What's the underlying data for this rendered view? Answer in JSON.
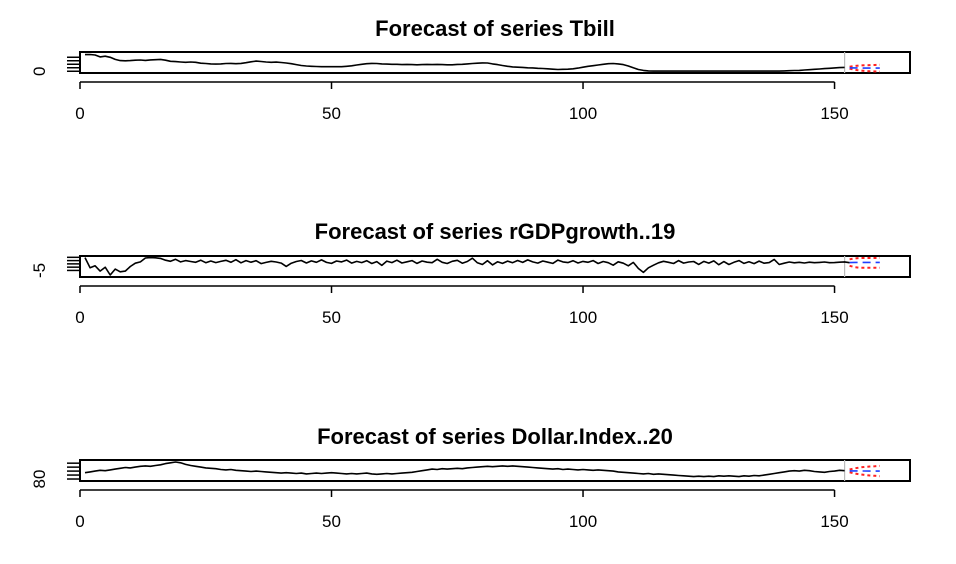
{
  "chart_data": [
    {
      "type": "line",
      "title": "Forecast of series Tbill",
      "xlabel": "",
      "ylabel": "",
      "xlim": [
        0,
        165
      ],
      "ylim": [
        -1,
        11
      ],
      "x_ticks": [
        0,
        50,
        100,
        150
      ],
      "x_tick_labels": [
        "0",
        "50",
        "100",
        "150"
      ],
      "y_ticks": [
        0,
        2,
        4,
        6,
        8
      ],
      "y_tick_labels": [
        "0"
      ],
      "history_end": 152,
      "series": [
        {
          "values": [
            9.5,
            9.6,
            9.3,
            8.2,
            8.6,
            8.0,
            6.8,
            6.1,
            6.0,
            6.1,
            6.3,
            6.4,
            6.2,
            6.5,
            6.6,
            6.8,
            6.3,
            5.7,
            5.5,
            5.3,
            5.1,
            5.3,
            5.1,
            4.6,
            4.4,
            4.2,
            4.1,
            4.2,
            4.4,
            4.5,
            4.3,
            4.5,
            4.9,
            5.4,
            5.8,
            5.6,
            5.3,
            5.1,
            5.2,
            5.0,
            4.7,
            4.3,
            3.8,
            3.3,
            3.0,
            2.8,
            2.7,
            2.6,
            2.6,
            2.6,
            2.6,
            2.6,
            2.8,
            3.1,
            3.6,
            4.0,
            4.3,
            4.5,
            4.4,
            4.2,
            4.1,
            4.0,
            4.0,
            3.8,
            3.9,
            3.8,
            3.7,
            3.8,
            3.9,
            3.8,
            3.9,
            3.8,
            3.7,
            3.7,
            3.9,
            4.0,
            4.2,
            4.4,
            4.6,
            4.8,
            4.7,
            4.2,
            3.8,
            3.3,
            2.8,
            2.5,
            2.3,
            2.2,
            2.0,
            1.9,
            1.7,
            1.6,
            1.4,
            1.2,
            1.0,
            1.1,
            1.2,
            1.4,
            1.8,
            2.3,
            2.8,
            3.2,
            3.6,
            4.0,
            4.3,
            4.4,
            4.2,
            3.8,
            3.0,
            2.0,
            1.0,
            0.5,
            0.2,
            0.1,
            0.1,
            0.1,
            0.1,
            0.1,
            0.1,
            0.1,
            0.1,
            0.1,
            0.1,
            0.1,
            0.1,
            0.1,
            0.1,
            0.1,
            0.1,
            0.1,
            0.1,
            0.1,
            0.1,
            0.1,
            0.1,
            0.1,
            0.1,
            0.1,
            0.1,
            0.2,
            0.3,
            0.4,
            0.5,
            0.7,
            0.9,
            1.1,
            1.3,
            1.5,
            1.7,
            1.9,
            2.1,
            2.2
          ],
          "color": "#000000"
        }
      ],
      "forecast": {
        "x": [
          153,
          154,
          155,
          156,
          157,
          158,
          159
        ],
        "mean": [
          2.0,
          1.9,
          1.9,
          1.8,
          1.8,
          1.8,
          1.8
        ],
        "lower": [
          1.5,
          0.8,
          0.4,
          0.2,
          0.0,
          -0.1,
          -0.2
        ],
        "upper": [
          2.6,
          3.0,
          3.3,
          3.4,
          3.5,
          3.6,
          3.7
        ]
      }
    },
    {
      "type": "line",
      "title": "Forecast of series rGDPgrowth..19",
      "xlabel": "",
      "ylabel": "",
      "xlim": [
        0,
        165
      ],
      "ylim": [
        -10,
        6
      ],
      "x_ticks": [
        0,
        50,
        100,
        150
      ],
      "x_tick_labels": [
        "0",
        "50",
        "100",
        "150"
      ],
      "y_ticks": [
        -5,
        -2.5,
        0,
        2.5,
        5
      ],
      "y_tick_labels": [
        "-5"
      ],
      "history_end": 152,
      "series": [
        {
          "values": [
            4.8,
            -3.0,
            -1.5,
            -5.5,
            -2.5,
            -8.5,
            -4.0,
            -6.0,
            -5.5,
            -2.0,
            0.5,
            1.5,
            4.5,
            4.8,
            4.6,
            4.2,
            2.8,
            2.0,
            3.5,
            1.5,
            2.5,
            1.8,
            1.2,
            2.8,
            0.9,
            2.2,
            1.0,
            1.9,
            2.7,
            1.2,
            3.2,
            0.8,
            2.5,
            1.3,
            2.4,
            0.2,
            1.1,
            2.0,
            1.4,
            0.6,
            -1.9,
            0.5,
            1.8,
            2.6,
            0.7,
            2.3,
            1.2,
            3.0,
            1.1,
            0.4,
            2.2,
            1.5,
            2.9,
            0.6,
            1.9,
            1.0,
            2.4,
            0.3,
            1.7,
            -1.2,
            2.1,
            1.0,
            2.8,
            0.7,
            1.6,
            2.5,
            0.4,
            2.2,
            1.3,
            0.9,
            3.5,
            1.2,
            0.3,
            2.0,
            2.7,
            0.5,
            1.8,
            4.3,
            0.8,
            -0.5,
            2.4,
            -0.8,
            1.6,
            0.4,
            2.1,
            0.9,
            2.6,
            1.1,
            3.0,
            1.5,
            0.6,
            2.2,
            1.3,
            0.4,
            2.9,
            1.5,
            1.0,
            2.4,
            0.7,
            1.9,
            1.2,
            2.5,
            0.3,
            1.8,
            0.9,
            -1.0,
            1.6,
            0.5,
            -1.5,
            1.1,
            -3.5,
            -6.5,
            -3.0,
            -1.0,
            0.8,
            2.0,
            1.2,
            0.3,
            2.5,
            0.6,
            1.4,
            1.8,
            -0.4,
            1.9,
            0.6,
            2.3,
            -0.6,
            1.7,
            -0.5,
            1.2,
            2.5,
            0.4,
            1.6,
            0.2,
            2.1,
            0.5,
            1.0,
            3.4,
            -0.5,
            0.5,
            1.4,
            0.8,
            1.2,
            0.7,
            1.3,
            0.9,
            1.1,
            1.4,
            0.9,
            1.0,
            1.3,
            1.5,
            0.9
          ],
          "color": "#000000"
        }
      ],
      "forecast": {
        "x": [
          153,
          154,
          155,
          156,
          157,
          158,
          159
        ],
        "mean": [
          1.0,
          1.1,
          1.1,
          1.1,
          1.1,
          1.1,
          1.1
        ],
        "lower": [
          -1.5,
          -2.5,
          -3.0,
          -3.0,
          -3.0,
          -3.0,
          -3.0
        ],
        "upper": [
          3.5,
          4.2,
          4.5,
          4.5,
          4.5,
          4.5,
          4.5
        ]
      }
    },
    {
      "type": "line",
      "title": "Forecast of series Dollar.Index..20",
      "xlabel": "",
      "ylabel": "",
      "xlim": [
        0,
        165
      ],
      "ylim": [
        75,
        128
      ],
      "x_ticks": [
        0,
        50,
        100,
        150
      ],
      "x_tick_labels": [
        "0",
        "50",
        "100",
        "150"
      ],
      "y_ticks": [
        80,
        90,
        100,
        110,
        120
      ],
      "y_tick_labels": [
        "80"
      ],
      "history_end": 152,
      "series": [
        {
          "values": [
            96.0,
            98.0,
            100.0,
            102.0,
            101.0,
            103.0,
            105.0,
            107.0,
            109.0,
            108.0,
            110.0,
            112.0,
            113.0,
            112.0,
            114.0,
            116.0,
            119.0,
            121.0,
            123.0,
            121.0,
            117.0,
            114.0,
            112.0,
            110.0,
            108.0,
            107.0,
            106.0,
            104.0,
            103.0,
            104.0,
            102.0,
            101.0,
            100.0,
            99.0,
            100.0,
            99.0,
            98.0,
            97.0,
            96.0,
            95.0,
            96.0,
            95.0,
            94.0,
            95.0,
            93.0,
            94.0,
            95.0,
            94.0,
            95.0,
            96.0,
            95.0,
            94.0,
            93.0,
            94.0,
            93.0,
            94.0,
            95.0,
            93.0,
            92.0,
            93.0,
            94.0,
            93.0,
            94.0,
            95.0,
            96.0,
            97.0,
            99.0,
            101.0,
            103.0,
            105.0,
            104.0,
            106.0,
            105.0,
            106.0,
            107.0,
            106.0,
            108.0,
            109.0,
            110.0,
            111.0,
            112.0,
            111.0,
            112.0,
            113.0,
            112.0,
            113.0,
            112.0,
            111.0,
            110.0,
            109.0,
            108.0,
            107.0,
            106.0,
            105.0,
            106.0,
            104.0,
            105.0,
            104.0,
            103.0,
            104.0,
            103.0,
            102.0,
            103.0,
            102.0,
            101.0,
            100.0,
            98.0,
            97.0,
            96.0,
            95.0,
            94.0,
            93.0,
            94.0,
            92.0,
            93.0,
            92.0,
            91.0,
            90.0,
            89.0,
            88.0,
            87.0,
            86.0,
            87.0,
            86.0,
            87.0,
            86.0,
            88.0,
            87.0,
            88.0,
            87.0,
            86.0,
            88.0,
            87.0,
            89.0,
            88.0,
            90.0,
            92.0,
            94.0,
            96.0,
            98.0,
            100.0,
            101.0,
            100.0,
            102.0,
            101.0,
            99.0,
            98.0,
            97.0,
            99.0,
            100.0,
            102.0,
            101.0
          ],
          "color": "#000000"
        }
      ],
      "forecast": {
        "x": [
          153,
          154,
          155,
          156,
          157,
          158,
          159
        ],
        "mean": [
          100.5,
          100.5,
          100.3,
          100.2,
          100.1,
          100.0,
          100.0
        ],
        "lower": [
          97.0,
          94.0,
          92.0,
          90.5,
          89.0,
          88.0,
          87.0
        ],
        "upper": [
          104.0,
          107.0,
          109.0,
          110.5,
          111.5,
          112.0,
          113.0
        ]
      }
    }
  ],
  "colors": {
    "history": "#000000",
    "forecast_mean": "#1f3fff",
    "forecast_interval": "#ff2020",
    "split_line": "#bbbbbb"
  }
}
